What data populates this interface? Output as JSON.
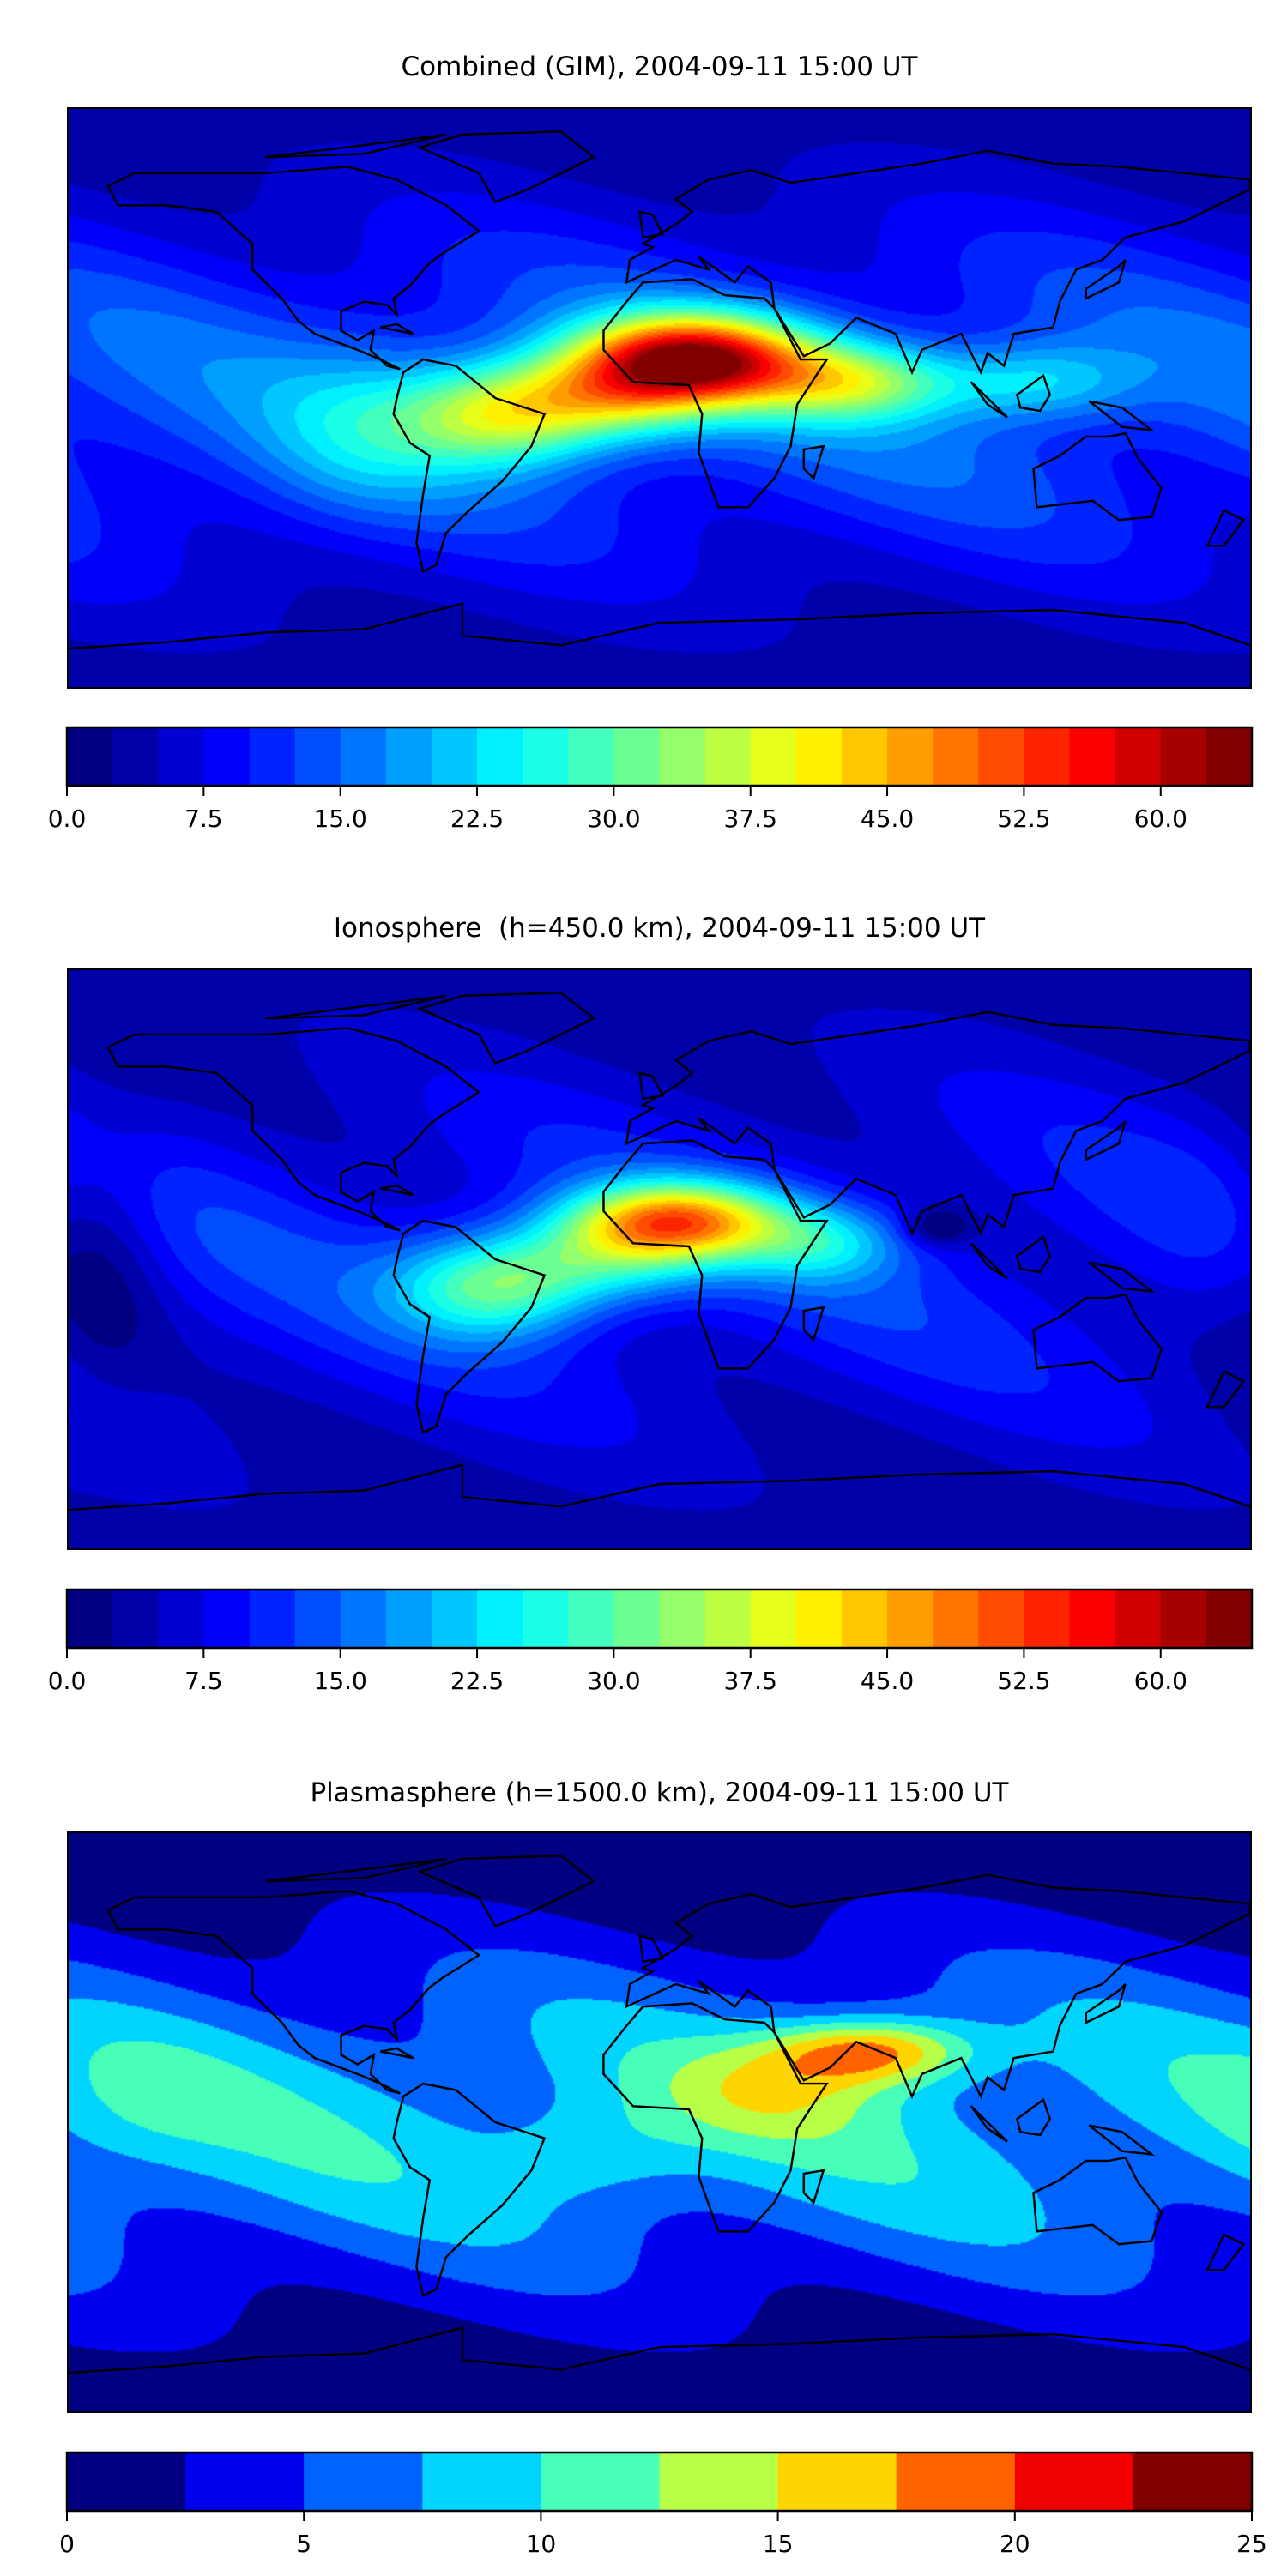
{
  "chart_data": [
    {
      "type": "heatmap",
      "title": "Combined (GIM), 2004-09-11 15:00 UT",
      "projection": "equirectangular",
      "xlim": [
        -180,
        180
      ],
      "ylim": [
        -90,
        90
      ],
      "levels": {
        "min": 0,
        "max": 65,
        "step": 2.5
      },
      "colorbar_ticks": [
        "0.0",
        "7.5",
        "15.0",
        "22.5",
        "30.0",
        "37.5",
        "45.0",
        "52.5",
        "60.0"
      ],
      "colormap": "jet",
      "field": {
        "base_equator": 14,
        "base_pole": 4,
        "features": [
          {
            "lon": 10,
            "lat": 12,
            "value": 48,
            "slon": 35,
            "slat": 14
          },
          {
            "lon": -48,
            "lat": -5,
            "value": 24,
            "slon": 30,
            "slat": 16
          },
          {
            "lon": -15,
            "lat": 0,
            "value": 18,
            "slon": 30,
            "slat": 14
          },
          {
            "lon": 60,
            "lat": 5,
            "value": 20,
            "slon": 30,
            "slat": 12
          },
          {
            "lon": 115,
            "lat": 5,
            "value": 12,
            "slon": 30,
            "slat": 12
          },
          {
            "lon": -90,
            "lat": -10,
            "value": 8,
            "slon": 30,
            "slat": 25
          }
        ]
      }
    },
    {
      "type": "heatmap",
      "title": "Ionosphere  (h=450.0 km), 2004-09-11 15:00 UT",
      "projection": "equirectangular",
      "xlim": [
        -180,
        180
      ],
      "ylim": [
        -90,
        90
      ],
      "levels": {
        "min": 0,
        "max": 65,
        "step": 2.5
      },
      "colorbar_ticks": [
        "0.0",
        "7.5",
        "15.0",
        "22.5",
        "30.0",
        "37.5",
        "45.0",
        "52.5",
        "60.0"
      ],
      "colormap": "jet",
      "field": {
        "base_equator": 10,
        "base_pole": 4,
        "features": [
          {
            "lon": 5,
            "lat": 12,
            "value": 36,
            "slon": 32,
            "slat": 12
          },
          {
            "lon": -50,
            "lat": -8,
            "value": 22,
            "slon": 30,
            "slat": 16
          },
          {
            "lon": -15,
            "lat": 0,
            "value": 14,
            "slon": 30,
            "slat": 14
          },
          {
            "lon": 50,
            "lat": 5,
            "value": 12,
            "slon": 25,
            "slat": 12
          },
          {
            "lon": 85,
            "lat": 10,
            "value": -9,
            "slon": 10,
            "slat": 6
          },
          {
            "lon": -170,
            "lat": 0,
            "value": -6,
            "slon": 20,
            "slat": 40
          }
        ]
      }
    },
    {
      "type": "heatmap",
      "title": "Plasmasphere (h=1500.0 km), 2004-09-11 15:00 UT",
      "projection": "equirectangular",
      "xlim": [
        -180,
        180
      ],
      "ylim": [
        -90,
        90
      ],
      "levels": {
        "min": 0,
        "max": 25,
        "step": 2.5
      },
      "colorbar_ticks": [
        "0",
        "5",
        "10",
        "15",
        "20",
        "25"
      ],
      "colormap": "jet",
      "field": {
        "base_equator": 8.5,
        "base_pole": 1,
        "features": [
          {
            "lon": 65,
            "lat": 22,
            "value": 12,
            "slon": 30,
            "slat": 10
          },
          {
            "lon": 35,
            "lat": 10,
            "value": 5,
            "slon": 35,
            "slat": 15
          },
          {
            "lon": -160,
            "lat": 5,
            "value": 2,
            "slon": 30,
            "slat": 20
          },
          {
            "lon": -20,
            "lat": -10,
            "value": 3,
            "slon": 30,
            "slat": 15
          }
        ]
      }
    }
  ]
}
